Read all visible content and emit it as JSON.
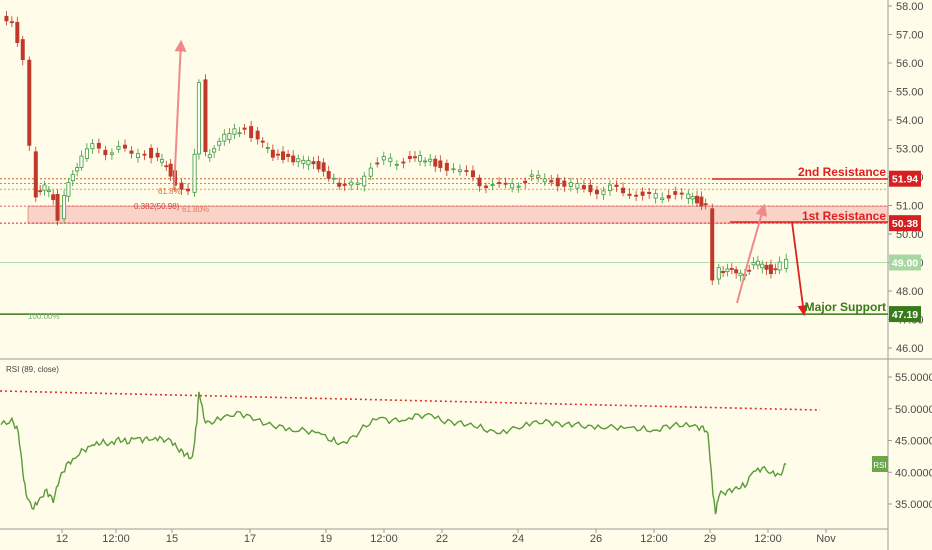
{
  "chart_data": [
    {
      "type": "candlestick",
      "name": "price",
      "y_axis": {
        "ticks": [
          "58.00",
          "57.00",
          "56.00",
          "55.00",
          "54.00",
          "53.00",
          "52.00",
          "51.00",
          "50.00",
          "49.00",
          "48.00",
          "47.00",
          "46.00"
        ],
        "ylim": [
          45.5,
          58.2
        ]
      },
      "x_axis": {
        "ticks": [
          "12",
          "12:00",
          "15",
          "17",
          "19",
          "12:00",
          "22",
          "24",
          "26",
          "12:00",
          "29",
          "12:00",
          "Nov"
        ],
        "xlim": [
          0,
          38
        ]
      },
      "price_series": [
        [
          0,
          57.6
        ],
        [
          0.5,
          57.5
        ],
        [
          1,
          56.0
        ],
        [
          1.3,
          53.0
        ],
        [
          1.6,
          51.4
        ],
        [
          2,
          51.6
        ],
        [
          2.4,
          51.3
        ],
        [
          2.6,
          50.6
        ],
        [
          2.9,
          51.3
        ],
        [
          3.3,
          52.2
        ],
        [
          3.7,
          52.7
        ],
        [
          4.2,
          53.1
        ],
        [
          4.8,
          52.9
        ],
        [
          5.4,
          53.0
        ],
        [
          6,
          52.8
        ],
        [
          6.6,
          52.9
        ],
        [
          7.2,
          52.6
        ],
        [
          7.6,
          52.4
        ],
        [
          8.0,
          51.8
        ],
        [
          8.3,
          51.6
        ],
        [
          8.6,
          51.4
        ],
        [
          8.9,
          52.9
        ],
        [
          9.1,
          55.3
        ],
        [
          9.4,
          52.8
        ],
        [
          9.8,
          53.0
        ],
        [
          10.5,
          53.6
        ],
        [
          11.2,
          53.7
        ],
        [
          11.8,
          53.3
        ],
        [
          12.5,
          52.8
        ],
        [
          13.2,
          52.7
        ],
        [
          13.9,
          52.5
        ],
        [
          14.6,
          52.4
        ],
        [
          15.3,
          51.9
        ],
        [
          15.8,
          51.6
        ],
        [
          16.4,
          51.8
        ],
        [
          17,
          52.4
        ],
        [
          17.6,
          52.6
        ],
        [
          18.2,
          52.5
        ],
        [
          18.8,
          52.7
        ],
        [
          19.5,
          52.6
        ],
        [
          20.2,
          52.4
        ],
        [
          20.8,
          52.3
        ],
        [
          21.4,
          52.1
        ],
        [
          22.0,
          51.8
        ],
        [
          22.6,
          51.7
        ],
        [
          23.2,
          51.7
        ],
        [
          23.8,
          51.8
        ],
        [
          24.4,
          52.0
        ],
        [
          25.0,
          51.9
        ],
        [
          25.6,
          51.8
        ],
        [
          26.2,
          51.7
        ],
        [
          26.8,
          51.6
        ],
        [
          27.4,
          51.5
        ],
        [
          28.0,
          51.6
        ],
        [
          28.6,
          51.5
        ],
        [
          29.2,
          51.4
        ],
        [
          29.8,
          51.3
        ],
        [
          30.4,
          51.35
        ],
        [
          31.0,
          51.4
        ],
        [
          31.6,
          51.3
        ],
        [
          32.0,
          51.2
        ],
        [
          32.4,
          51.0
        ],
        [
          32.7,
          48.3
        ],
        [
          33.0,
          48.8
        ],
        [
          33.4,
          48.7
        ],
        [
          33.8,
          48.6
        ],
        [
          34.2,
          48.7
        ],
        [
          34.6,
          48.9
        ],
        [
          35.0,
          48.95
        ],
        [
          35.4,
          48.7
        ],
        [
          35.8,
          48.9
        ],
        [
          36.1,
          49.0
        ]
      ],
      "resistance_2": {
        "label": "2nd Resistance",
        "value": "51.94"
      },
      "resistance_1": {
        "label": "1st Resistance",
        "value": "50.38"
      },
      "support": {
        "label": "Major Support",
        "value": "47.19"
      },
      "current": {
        "value": "49.00"
      },
      "fib_labels": {
        "level_382": "0.382(50.98)",
        "level_618": "61.8%",
        "level_786": "61.80%",
        "level_100": "100.00%"
      },
      "colors": {
        "up": "#3a9a3a",
        "down": "#c0392b",
        "resistance": "#e02020",
        "support": "#3a7a1a",
        "zone": "#f4a0a0",
        "arrow_pink": "#f08a8a"
      }
    },
    {
      "type": "line",
      "name": "RSI",
      "label": "RSI (89, close)",
      "badge": "RSI",
      "y_axis": {
        "ticks": [
          "55.0000",
          "50.0000",
          "45.0000",
          "40.0000",
          "35.0000"
        ],
        "ylim": [
          32.5,
          57.5
        ]
      },
      "series": [
        {
          "values": [
            [
              0,
              47.5
            ],
            [
              0.5,
              48.2
            ],
            [
              0.8,
              46.5
            ],
            [
              1.0,
              40
            ],
            [
              1.2,
              35.6
            ],
            [
              1.5,
              34.5
            ],
            [
              1.8,
              36.0
            ],
            [
              2.1,
              37.0
            ],
            [
              2.4,
              35.5
            ],
            [
              2.7,
              39.0
            ],
            [
              3.0,
              41.0
            ],
            [
              3.4,
              42.5
            ],
            [
              3.8,
              43.5
            ],
            [
              4.2,
              44.0
            ],
            [
              4.6,
              44.8
            ],
            [
              5.0,
              44.5
            ],
            [
              5.4,
              45.2
            ],
            [
              5.8,
              44.8
            ],
            [
              6.2,
              45.3
            ],
            [
              6.6,
              45.0
            ],
            [
              7.0,
              45.5
            ],
            [
              7.4,
              45.3
            ],
            [
              7.8,
              44.8
            ],
            [
              8.2,
              43.5
            ],
            [
              8.5,
              42.8
            ],
            [
              8.8,
              42.2
            ],
            [
              9.0,
              48.0
            ],
            [
              9.1,
              52.6
            ],
            [
              9.4,
              47.5
            ],
            [
              9.8,
              48.2
            ],
            [
              10.4,
              49.0
            ],
            [
              11.0,
              49.2
            ],
            [
              11.6,
              48.5
            ],
            [
              12.2,
              47.5
            ],
            [
              12.8,
              47.2
            ],
            [
              13.4,
              46.8
            ],
            [
              14.0,
              46.5
            ],
            [
              14.6,
              46.0
            ],
            [
              15.2,
              45.2
            ],
            [
              15.6,
              44.5
            ],
            [
              16.2,
              45.5
            ],
            [
              16.8,
              47.5
            ],
            [
              17.4,
              48.5
            ],
            [
              18.0,
              48.0
            ],
            [
              18.6,
              48.5
            ],
            [
              19.2,
              49.0
            ],
            [
              19.8,
              48.8
            ],
            [
              20.4,
              48.0
            ],
            [
              21.0,
              47.8
            ],
            [
              21.6,
              47.5
            ],
            [
              22.2,
              47.0
            ],
            [
              22.8,
              46.0
            ],
            [
              23.4,
              46.5
            ],
            [
              24.0,
              47.5
            ],
            [
              24.6,
              48.0
            ],
            [
              25.2,
              47.8
            ],
            [
              25.8,
              47.5
            ],
            [
              26.4,
              47.5
            ],
            [
              27.0,
              47.2
            ],
            [
              27.6,
              47.3
            ],
            [
              28.2,
              47.0
            ],
            [
              28.8,
              46.8
            ],
            [
              29.4,
              47.0
            ],
            [
              30.0,
              46.5
            ],
            [
              30.6,
              47.2
            ],
            [
              31.2,
              47.5
            ],
            [
              31.8,
              47.2
            ],
            [
              32.2,
              47.0
            ],
            [
              32.5,
              46.5
            ],
            [
              32.7,
              38.0
            ],
            [
              32.85,
              33.2
            ],
            [
              33.0,
              36.5
            ],
            [
              33.4,
              37.0
            ],
            [
              33.8,
              37.5
            ],
            [
              34.2,
              38.0
            ],
            [
              34.6,
              40.0
            ],
            [
              35.0,
              40.5
            ],
            [
              35.4,
              40.2
            ],
            [
              35.8,
              39.5
            ],
            [
              36.1,
              41.3
            ]
          ]
        }
      ]
    }
  ]
}
